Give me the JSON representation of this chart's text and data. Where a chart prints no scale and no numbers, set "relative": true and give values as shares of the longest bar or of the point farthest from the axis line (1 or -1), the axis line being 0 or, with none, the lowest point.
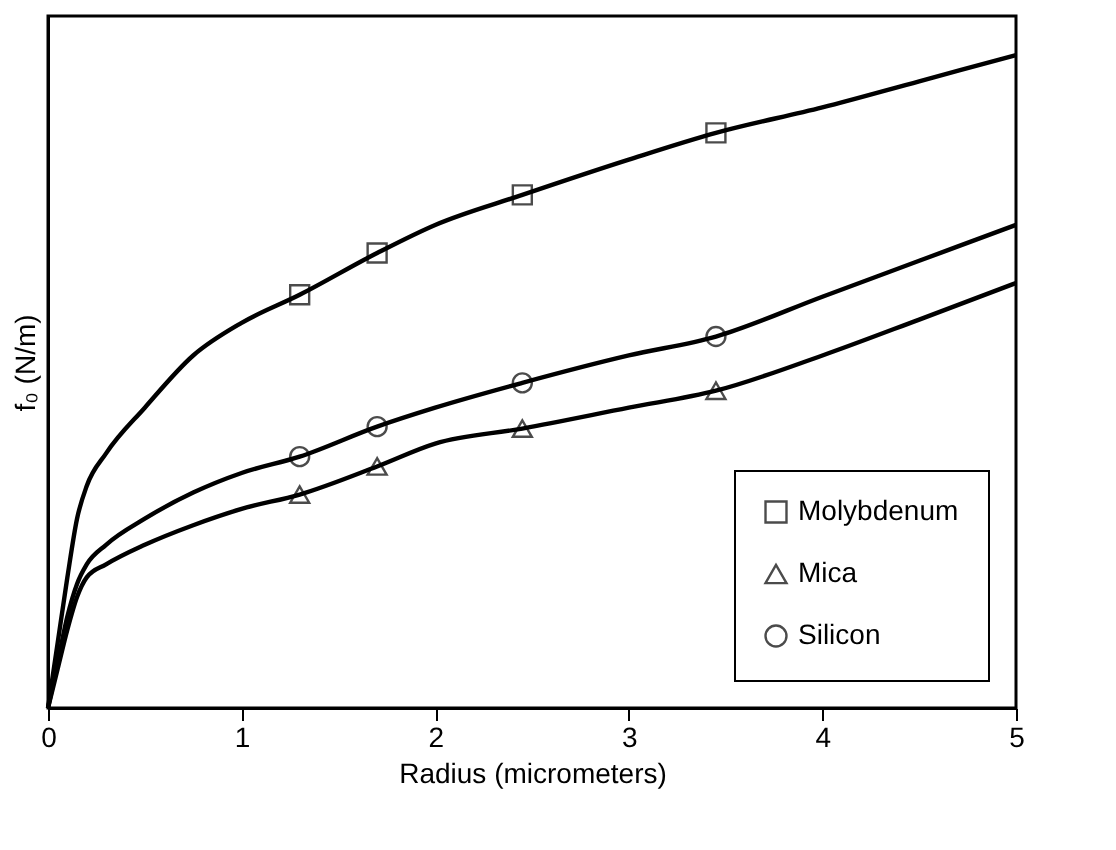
{
  "chart_data": {
    "type": "line",
    "xlabel": "Radius (micrometers)",
    "ylabel": "f₀ (N/m)",
    "relative": true,
    "xlim": [
      0,
      5
    ],
    "xticks": [
      0,
      1,
      2,
      3,
      4,
      5
    ],
    "legend": "bottom right",
    "grid": false,
    "series": [
      {
        "color": "#000000",
        "x": [
          0,
          0.05,
          0.1,
          0.15,
          0.2,
          0.3,
          0.5,
          0.75,
          1,
          1.3,
          1.7,
          2,
          2.45,
          3,
          3.45,
          4,
          4.5,
          5
        ],
        "values": [
          0,
          0.1,
          0.2,
          0.29,
          0.34,
          0.39,
          0.46,
          0.54,
          0.59,
          0.633,
          0.697,
          0.74,
          0.786,
          0.84,
          0.881,
          0.92,
          0.96,
          1
        ]
      },
      {
        "color": "#000000",
        "x": [
          0,
          0.05,
          0.1,
          0.15,
          0.2,
          0.3,
          0.5,
          0.75,
          1,
          1.3,
          1.7,
          2,
          2.45,
          3,
          3.45,
          4,
          4.5,
          5
        ],
        "values": [
          0,
          0.06,
          0.12,
          0.17,
          0.2,
          0.22,
          0.25,
          0.28,
          0.305,
          0.327,
          0.37,
          0.405,
          0.428,
          0.46,
          0.486,
          0.54,
          0.595,
          0.651
        ]
      },
      {
        "color": "#000000",
        "x": [
          0,
          0.05,
          0.1,
          0.15,
          0.2,
          0.3,
          0.5,
          0.75,
          1,
          1.3,
          1.7,
          2,
          2.45,
          3,
          3.45,
          4,
          4.5,
          5
        ],
        "values": [
          0,
          0.07,
          0.14,
          0.19,
          0.22,
          0.25,
          0.29,
          0.33,
          0.36,
          0.385,
          0.431,
          0.46,
          0.498,
          0.54,
          0.569,
          0.63,
          0.685,
          0.74
        ]
      },
      {
        "type": "scatter",
        "name": "Molybdenum",
        "color": "#000000",
        "marker": "square",
        "x": [
          1.3,
          1.7,
          2.45,
          3.45
        ],
        "values": [
          0.633,
          0.697,
          0.786,
          0.881
        ]
      },
      {
        "type": "scatter",
        "name": "Mica",
        "color": "#000000",
        "marker": "triangle",
        "x": [
          1.3,
          1.7,
          2.45,
          3.45
        ],
        "values": [
          0.327,
          0.37,
          0.428,
          0.486
        ]
      },
      {
        "type": "scatter",
        "name": "Silicon",
        "color": "#000000",
        "marker": "circle",
        "x": [
          1.3,
          1.7,
          2.45,
          3.45
        ],
        "values": [
          0.385,
          0.431,
          0.498,
          0.569
        ]
      }
    ]
  }
}
